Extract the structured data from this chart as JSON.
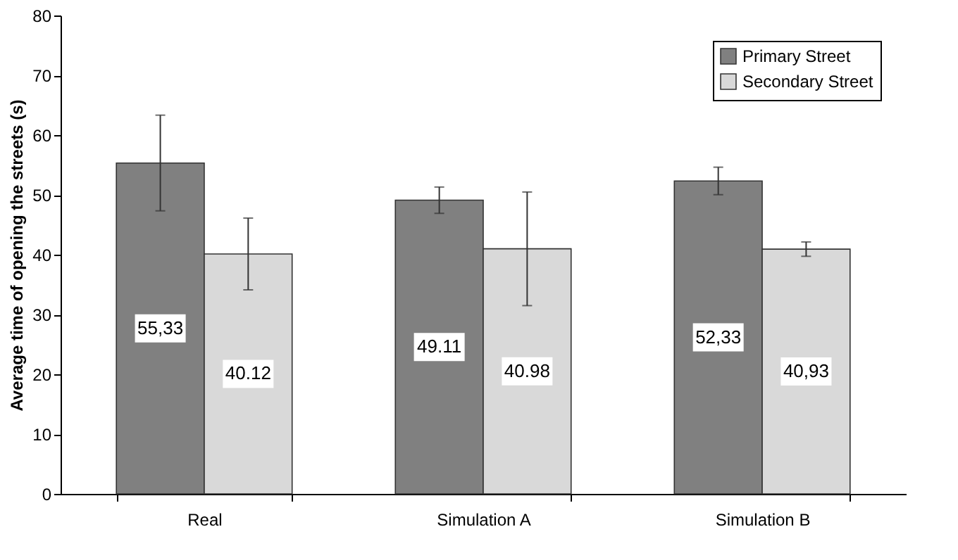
{
  "chart_data": {
    "type": "bar",
    "ylabel": "Average time of opening the streets (s)",
    "categories": [
      "Real",
      "Simulation A",
      "Simulation B"
    ],
    "series": [
      {
        "name": "Primary Street",
        "color": "#808080",
        "values": [
          55.33,
          49.11,
          52.33
        ],
        "errors": [
          8,
          2.2,
          2.3
        ],
        "value_labels": [
          "55,33",
          "49.11",
          "52,33"
        ]
      },
      {
        "name": "Secondary Street",
        "color": "#d9d9d9",
        "values": [
          40.12,
          40.98,
          40.93
        ],
        "errors": [
          6,
          9.5,
          1.2
        ],
        "value_labels": [
          "40.12",
          "40.98",
          "40,93"
        ]
      }
    ],
    "ylim": [
      0,
      80
    ],
    "yticks": [
      0,
      10,
      20,
      30,
      40,
      50,
      60,
      70,
      80
    ],
    "grid": false,
    "legend": "top right"
  }
}
